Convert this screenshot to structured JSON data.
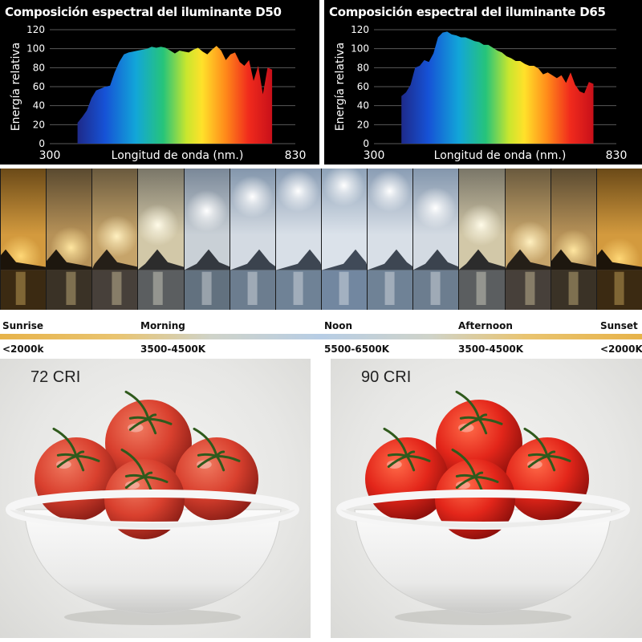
{
  "chart_data": [
    {
      "type": "area",
      "title": "Composición espectral del iluminante D50",
      "xlabel": "Longitud de onda (nm.)",
      "ylabel": "Energía relativa",
      "xlim": [
        300,
        830
      ],
      "ylim": [
        0,
        120
      ],
      "yticks": [
        0,
        20,
        40,
        60,
        80,
        100,
        120
      ],
      "xtick_labels": [
        "300",
        "830"
      ],
      "x": [
        360,
        370,
        380,
        390,
        400,
        410,
        420,
        430,
        440,
        450,
        460,
        470,
        480,
        490,
        500,
        510,
        520,
        530,
        540,
        550,
        560,
        570,
        580,
        590,
        600,
        610,
        620,
        630,
        640,
        650,
        660,
        670,
        680,
        690,
        700,
        710,
        720,
        730,
        740,
        750,
        760,
        770,
        780
      ],
      "values": [
        22,
        28,
        35,
        48,
        56,
        58,
        60,
        61,
        75,
        86,
        94,
        96,
        97,
        98,
        99,
        100,
        102,
        101,
        102,
        101,
        98,
        95,
        98,
        97,
        96,
        99,
        101,
        97,
        94,
        99,
        103,
        98,
        88,
        94,
        96,
        86,
        82,
        88,
        66,
        82,
        52,
        80,
        78
      ]
    },
    {
      "type": "area",
      "title": "Composición espectral del iluminante D65",
      "xlabel": "Longitud de onda (nm.)",
      "ylabel": "Energía relativa",
      "xlim": [
        300,
        830
      ],
      "ylim": [
        0,
        120
      ],
      "yticks": [
        0,
        20,
        40,
        60,
        80,
        100,
        120
      ],
      "xtick_labels": [
        "300",
        "830"
      ],
      "x": [
        360,
        370,
        380,
        390,
        400,
        410,
        420,
        430,
        440,
        450,
        460,
        470,
        480,
        490,
        500,
        510,
        520,
        530,
        540,
        550,
        560,
        570,
        580,
        590,
        600,
        610,
        620,
        630,
        640,
        650,
        660,
        670,
        680,
        690,
        700,
        710,
        720,
        730,
        740,
        750,
        760,
        770,
        780
      ],
      "values": [
        50,
        54,
        62,
        80,
        82,
        88,
        86,
        95,
        112,
        117,
        118,
        115,
        114,
        112,
        112,
        110,
        108,
        107,
        104,
        104,
        101,
        98,
        96,
        92,
        90,
        87,
        87,
        84,
        82,
        82,
        79,
        73,
        75,
        72,
        69,
        72,
        64,
        75,
        62,
        55,
        53,
        65,
        63
      ]
    }
  ],
  "daylight": {
    "times": [
      "Sunrise",
      "Morning",
      "Noon",
      "Afternoon",
      "Sunset"
    ],
    "kelvins": [
      "<2000k",
      "3500-4500K",
      "5500-6500K",
      "3500-4500K",
      "<2000K"
    ]
  },
  "comparison": {
    "left_label": "72 CRI",
    "right_label": "90 CRI"
  }
}
